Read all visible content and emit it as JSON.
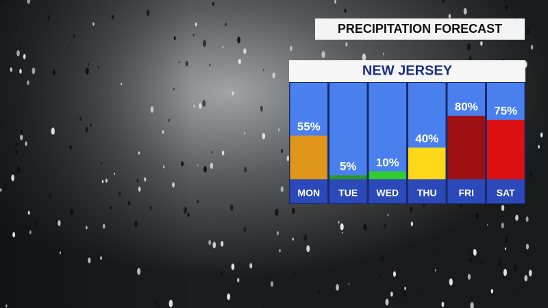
{
  "title": "PRECIPITATION FORECAST",
  "chart_data": {
    "type": "bar",
    "title": "NEW JERSEY",
    "categories": [
      "MON",
      "TUE",
      "WED",
      "THU",
      "FRI",
      "SAT"
    ],
    "values": [
      55,
      5,
      10,
      40,
      80,
      75
    ],
    "value_labels": [
      "55%",
      "5%",
      "10%",
      "40%",
      "80%",
      "75%"
    ],
    "colors": [
      "#e0961a",
      "#2a9a2a",
      "#30cc30",
      "#ffd81a",
      "#9e0f12",
      "#dc1010"
    ],
    "ylim": [
      0,
      100
    ]
  }
}
